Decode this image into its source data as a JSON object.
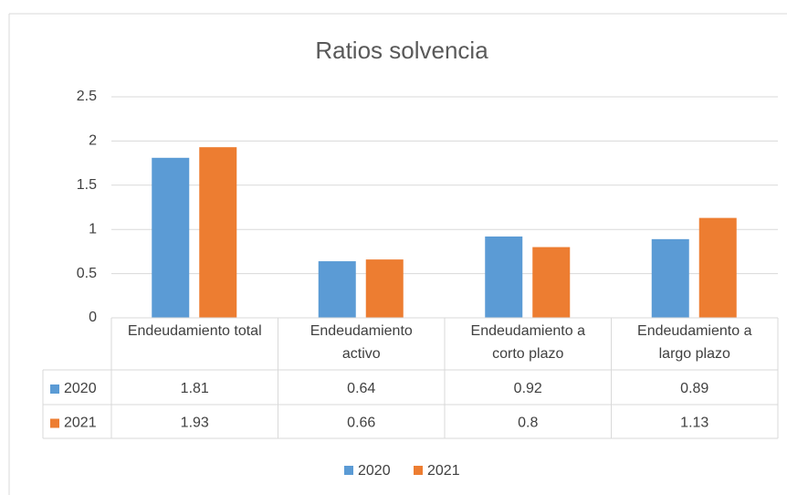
{
  "chart_data": {
    "type": "bar",
    "title": "Ratios solvencia",
    "categories": [
      "Endeudamiento total",
      "Endeudamiento activo",
      "Endeudamiento a corto plazo",
      "Endeudamiento a largo plazo"
    ],
    "series": [
      {
        "name": "2020",
        "color": "#5b9bd5",
        "values": [
          1.81,
          0.64,
          0.92,
          0.89
        ]
      },
      {
        "name": "2021",
        "color": "#ed7d31",
        "values": [
          1.93,
          0.66,
          0.8,
          1.13
        ]
      }
    ],
    "ylim": [
      0,
      2.5
    ],
    "yticks": [
      0,
      0.5,
      1,
      1.5,
      2,
      2.5
    ],
    "grid": true,
    "data_table": true,
    "legend": "bottom"
  }
}
